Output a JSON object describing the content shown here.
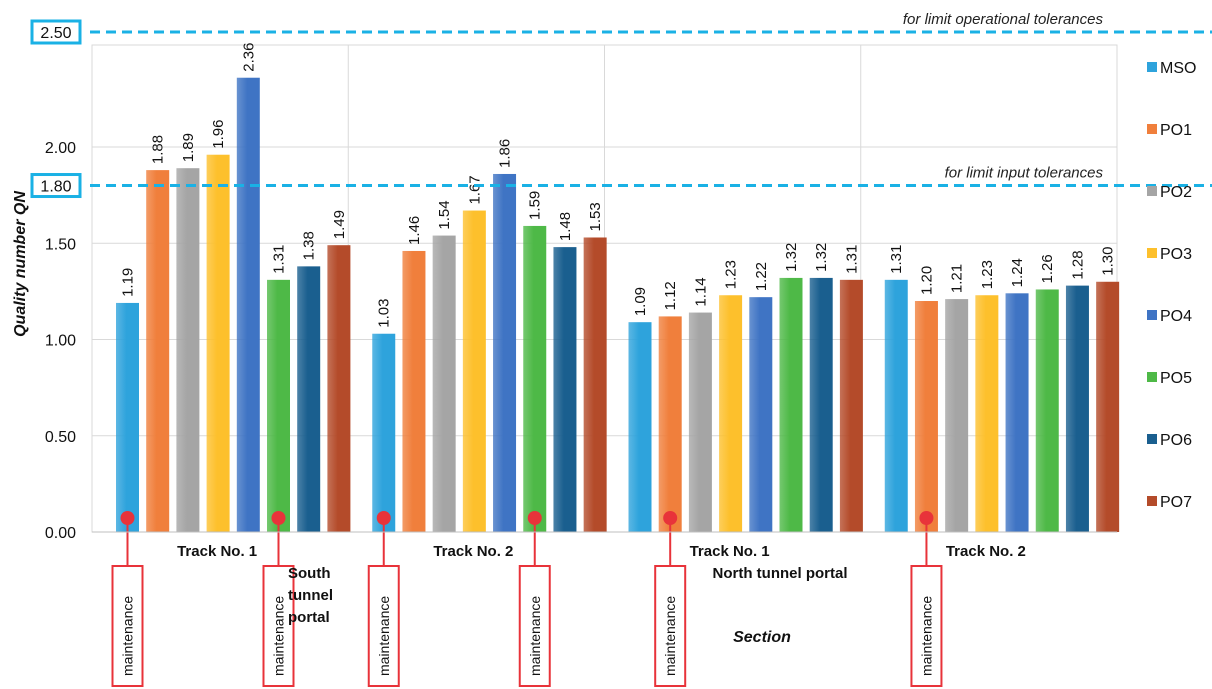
{
  "chart_data": {
    "type": "bar",
    "title": "",
    "xlabel": "Section",
    "ylabel": "Quality number QN",
    "ylim": [
      0,
      2.5
    ],
    "yticks": [
      "0.00",
      "0.50",
      "1.00",
      "1.50",
      "2.00"
    ],
    "grid": true,
    "legend_position": "right",
    "categories": [
      "Track No. 1",
      "Track No. 2",
      "Track No. 1",
      "Track No. 2"
    ],
    "section_groups": [
      {
        "label_lines": [
          "South",
          "tunnel",
          "portal"
        ]
      },
      {
        "label_lines": [
          "North tunnel portal"
        ]
      }
    ],
    "series": [
      {
        "name": "MSO",
        "color": "#2ea3dc",
        "values": [
          1.19,
          1.03,
          1.09,
          1.31
        ],
        "labels": [
          "1.19",
          "1.03",
          "1.09",
          "1.31"
        ]
      },
      {
        "name": "PO1",
        "color": "#f07f3c",
        "values": [
          1.88,
          1.46,
          1.12,
          1.2
        ],
        "labels": [
          "1.88",
          "1.46",
          "1.12",
          "1.20"
        ]
      },
      {
        "name": "PO2",
        "color": "#a5a5a5",
        "values": [
          1.89,
          1.54,
          1.14,
          1.21
        ],
        "labels": [
          "1.89",
          "1.54",
          "1.14",
          "1.21"
        ]
      },
      {
        "name": "PO3",
        "color": "#fdc02c",
        "values": [
          1.96,
          1.67,
          1.23,
          1.23
        ],
        "labels": [
          "1.96",
          "1.67",
          "1.23",
          "1.23"
        ]
      },
      {
        "name": "PO4",
        "color": "#3f74c4",
        "values": [
          2.36,
          1.86,
          1.22,
          1.24
        ],
        "labels": [
          "2.36",
          "1.86",
          "1.22",
          "1.24"
        ]
      },
      {
        "name": "PO5",
        "color": "#4eb947",
        "values": [
          1.31,
          1.59,
          1.32,
          1.26
        ],
        "labels": [
          "1.31",
          "1.59",
          "1.32",
          "1.26"
        ]
      },
      {
        "name": "PO6",
        "color": "#1a5f8f",
        "values": [
          1.38,
          1.48,
          1.32,
          1.28
        ],
        "labels": [
          "1.38",
          "1.48",
          "1.32",
          "1.28"
        ]
      },
      {
        "name": "PO7",
        "color": "#b44b2a",
        "values": [
          1.49,
          1.53,
          1.31,
          1.3
        ],
        "labels": [
          "1.49",
          "1.53",
          "1.31",
          "1.30"
        ]
      }
    ],
    "reference_lines": [
      {
        "value": 2.5,
        "label": "2.50",
        "text": "for limit operational tolerances",
        "color": "#1ab1e5"
      },
      {
        "value": 1.8,
        "label": "1.80",
        "text": "for limit input tolerances",
        "color": "#1ab1e5"
      }
    ],
    "maintenance_markers": [
      {
        "category_index": 0,
        "series_index": 0,
        "text": "maintenance"
      },
      {
        "category_index": 0,
        "series_index": 5,
        "text": "maintenance"
      },
      {
        "category_index": 1,
        "series_index": 0,
        "text": "maintenance"
      },
      {
        "category_index": 1,
        "series_index": 5,
        "text": "maintenance"
      },
      {
        "category_index": 2,
        "series_index": 1,
        "text": "maintenance"
      },
      {
        "category_index": 3,
        "series_index": 1,
        "text": "maintenance"
      }
    ],
    "marker_color": "#e8333a"
  }
}
